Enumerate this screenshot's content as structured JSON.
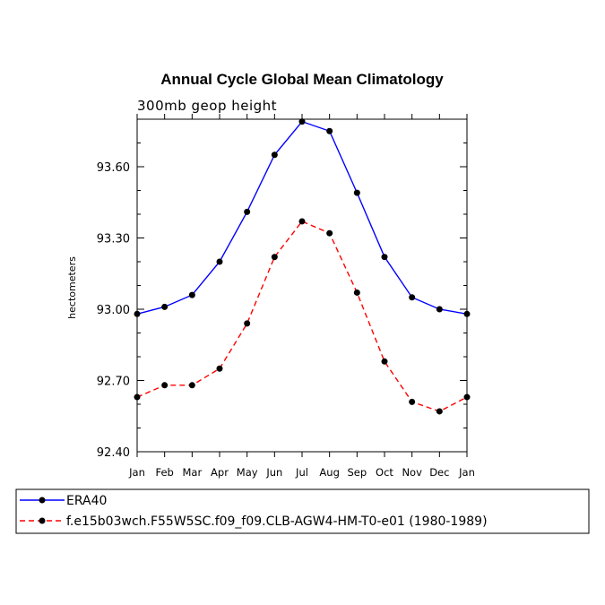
{
  "chart_data": {
    "type": "line",
    "title": "Annual Cycle Global Mean Climatology",
    "subtitle": "300mb geop height",
    "xlabel": "",
    "ylabel": "hectometers",
    "categories": [
      "Jan",
      "Feb",
      "Mar",
      "Apr",
      "May",
      "Jun",
      "Jul",
      "Aug",
      "Sep",
      "Oct",
      "Nov",
      "Dec",
      "Jan"
    ],
    "ylim": [
      92.4,
      93.8
    ],
    "yticks": [
      "92.40",
      "92.70",
      "93.00",
      "93.30",
      "93.60"
    ],
    "grid": false,
    "legend_position": "bottom",
    "series": [
      {
        "name": "ERA40",
        "color": "#0000ff",
        "dash": "solid",
        "values": [
          92.98,
          93.01,
          93.06,
          93.2,
          93.41,
          93.65,
          93.79,
          93.75,
          93.49,
          93.22,
          93.05,
          93.0,
          92.98
        ]
      },
      {
        "name": "f.e15b03wch.F55W5SC.f09_f09.CLB-AGW4-HM-T0-e01 (1980-1989)",
        "color": "#ff0000",
        "dash": "dashed",
        "values": [
          92.63,
          92.68,
          92.68,
          92.75,
          92.94,
          93.22,
          93.37,
          93.32,
          93.07,
          92.78,
          92.61,
          92.57,
          92.63
        ]
      }
    ]
  }
}
